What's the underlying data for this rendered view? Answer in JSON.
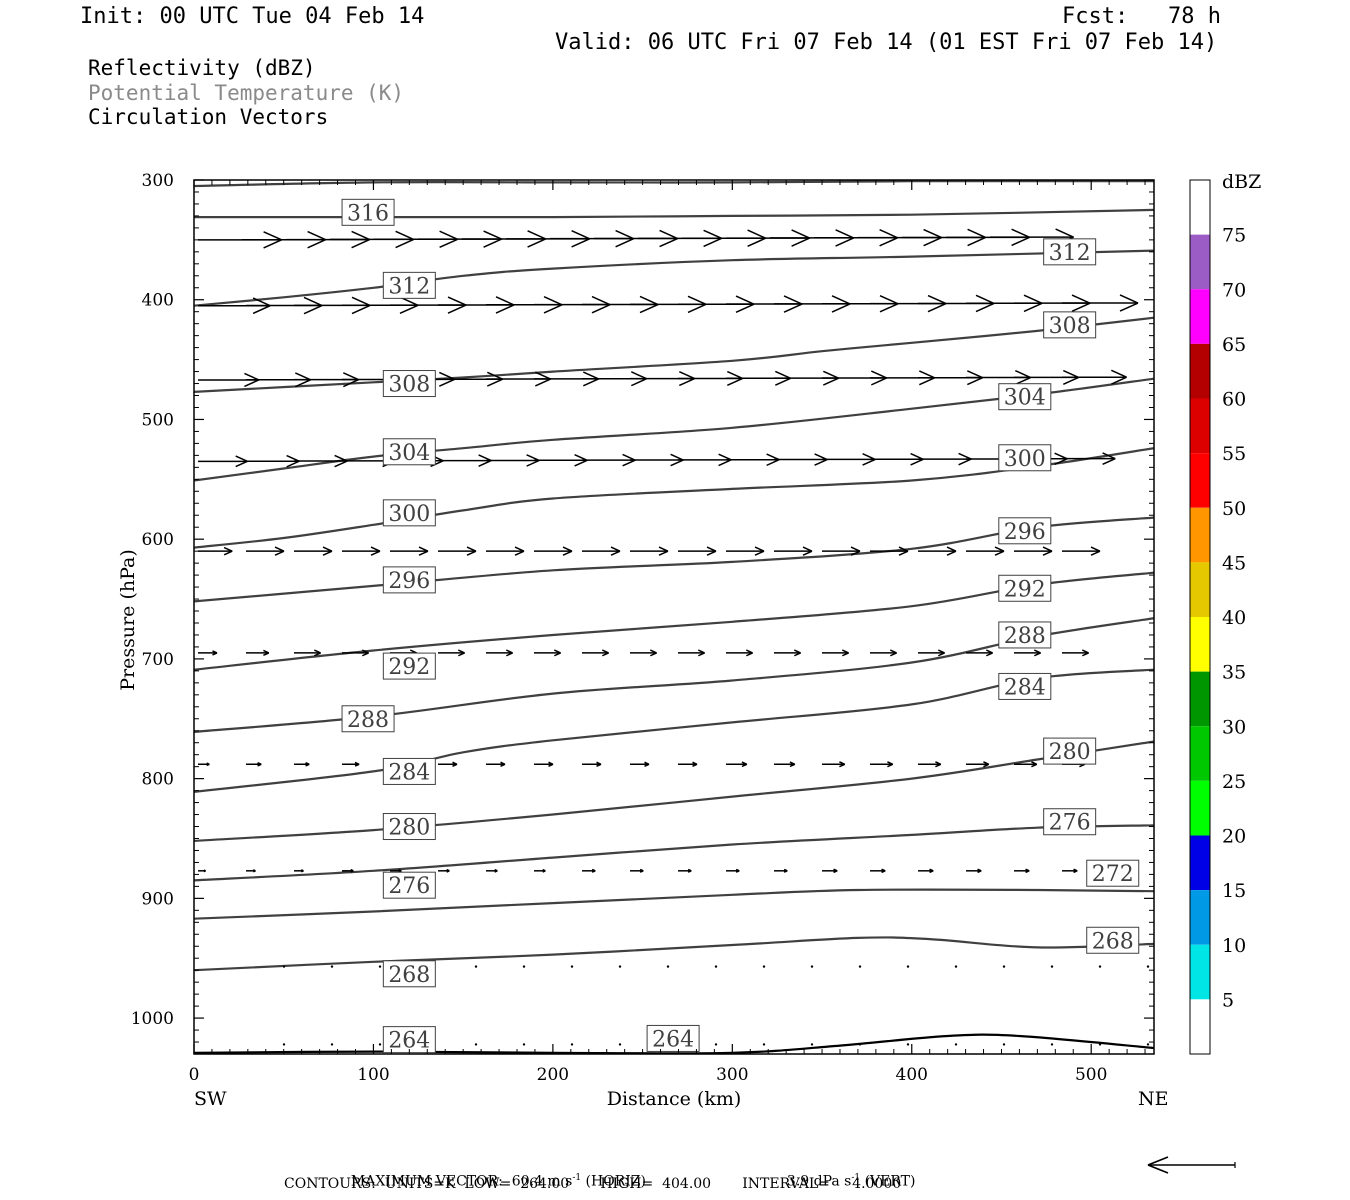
{
  "header": {
    "init": "Init: 00 UTC Tue 04 Feb 14",
    "fcst": "Fcst:   78 h",
    "valid": "Valid: 06 UTC Fri 07 Feb 14 (01 EST Fri 07 Feb 14)"
  },
  "titles": {
    "line1": "Reflectivity (dBZ)",
    "line2": "Potential Temperature (K)",
    "line3": "Circulation Vectors"
  },
  "chart_data": {
    "type": "cross-section",
    "xlabel": "Distance (km)",
    "ylabel": "Pressure (hPa)",
    "xlim": [
      0,
      535
    ],
    "ylim": [
      1030,
      300
    ],
    "x_ticks": [
      0,
      100,
      200,
      300,
      400,
      500
    ],
    "y_ticks": [
      300,
      400,
      500,
      600,
      700,
      800,
      900,
      1000
    ],
    "x_left_label": "SW",
    "x_right_label": "NE",
    "colors": {
      "contour": "#404040",
      "vector": "#000000"
    },
    "contours": [
      {
        "value": 316,
        "points": [
          [
            0,
            305
          ],
          [
            100,
            302
          ],
          [
            200,
            302
          ],
          [
            300,
            302
          ],
          [
            400,
            301
          ],
          [
            535,
            301
          ]
        ],
        "labels": [
          [
            97,
            327
          ]
        ]
      },
      {
        "value": 312,
        "points": [
          [
            0,
            331
          ],
          [
            100,
            331
          ],
          [
            200,
            331
          ],
          [
            300,
            330
          ],
          [
            400,
            329
          ],
          [
            535,
            325
          ]
        ],
        "labels": [
          [
            120,
            388
          ],
          [
            488,
            360
          ]
        ]
      },
      {
        "value": 308,
        "points": [
          [
            0,
            405
          ],
          [
            50,
            398
          ],
          [
            100,
            390
          ],
          [
            150,
            380
          ],
          [
            200,
            374
          ],
          [
            300,
            367
          ],
          [
            400,
            364
          ],
          [
            535,
            359
          ]
        ],
        "labels": [
          [
            120,
            470
          ],
          [
            488,
            421
          ]
        ]
      },
      {
        "value": 304,
        "points": [
          [
            0,
            477
          ],
          [
            100,
            469
          ],
          [
            150,
            465
          ],
          [
            200,
            460
          ],
          [
            300,
            451
          ],
          [
            350,
            443
          ],
          [
            400,
            436
          ],
          [
            470,
            426
          ],
          [
            535,
            415
          ]
        ],
        "labels": [
          [
            120,
            527
          ],
          [
            463,
            481
          ]
        ]
      },
      {
        "value": 300,
        "points": [
          [
            0,
            551
          ],
          [
            50,
            541
          ],
          [
            100,
            531
          ],
          [
            150,
            524
          ],
          [
            200,
            517
          ],
          [
            300,
            507
          ],
          [
            400,
            491
          ],
          [
            470,
            479
          ],
          [
            535,
            466
          ]
        ],
        "labels": [
          [
            120,
            578
          ],
          [
            463,
            532
          ]
        ]
      },
      {
        "value": 296,
        "points": [
          [
            0,
            607
          ],
          [
            50,
            599
          ],
          [
            100,
            588
          ],
          [
            150,
            576
          ],
          [
            200,
            566
          ],
          [
            300,
            558
          ],
          [
            400,
            551
          ],
          [
            470,
            539
          ],
          [
            535,
            524
          ]
        ],
        "labels": [
          [
            120,
            634
          ],
          [
            463,
            593
          ]
        ]
      },
      {
        "value": 292,
        "points": [
          [
            0,
            652
          ],
          [
            100,
            639
          ],
          [
            200,
            626
          ],
          [
            300,
            619
          ],
          [
            400,
            608
          ],
          [
            470,
            590
          ],
          [
            535,
            582
          ]
        ],
        "labels": [
          [
            120,
            706
          ],
          [
            463,
            641
          ]
        ]
      },
      {
        "value": 288,
        "points": [
          [
            0,
            709
          ],
          [
            100,
            693
          ],
          [
            200,
            680
          ],
          [
            300,
            669
          ],
          [
            400,
            656
          ],
          [
            470,
            638
          ],
          [
            535,
            628
          ]
        ],
        "labels": [
          [
            97,
            750
          ],
          [
            463,
            680
          ]
        ]
      },
      {
        "value": 284,
        "points": [
          [
            0,
            761
          ],
          [
            100,
            748
          ],
          [
            200,
            729
          ],
          [
            300,
            718
          ],
          [
            400,
            703
          ],
          [
            470,
            681
          ],
          [
            535,
            666
          ]
        ],
        "labels": [
          [
            120,
            794
          ],
          [
            463,
            723
          ]
        ]
      },
      {
        "value": 280,
        "points": [
          [
            0,
            811
          ],
          [
            100,
            794
          ],
          [
            150,
            778
          ],
          [
            200,
            768
          ],
          [
            300,
            753
          ],
          [
            400,
            738
          ],
          [
            470,
            716
          ],
          [
            535,
            709
          ]
        ],
        "labels": [
          [
            120,
            840
          ],
          [
            488,
            777
          ]
        ]
      },
      {
        "value": 276,
        "points": [
          [
            0,
            852
          ],
          [
            100,
            843
          ],
          [
            200,
            830
          ],
          [
            300,
            815
          ],
          [
            400,
            800
          ],
          [
            470,
            784
          ],
          [
            535,
            769
          ]
        ],
        "labels": [
          [
            120,
            889
          ],
          [
            488,
            836
          ]
        ]
      },
      {
        "value": 272,
        "points": [
          [
            0,
            885
          ],
          [
            100,
            877
          ],
          [
            200,
            866
          ],
          [
            300,
            855
          ],
          [
            400,
            847
          ],
          [
            470,
            841
          ],
          [
            535,
            839
          ]
        ],
        "labels": [
          [
            512,
            879
          ]
        ]
      },
      {
        "value": 268,
        "points": [
          [
            0,
            917
          ],
          [
            100,
            911
          ],
          [
            200,
            904
          ],
          [
            300,
            897
          ],
          [
            370,
            893
          ],
          [
            470,
            893
          ],
          [
            535,
            894
          ]
        ],
        "labels": [
          [
            120,
            963
          ],
          [
            512,
            935
          ]
        ]
      },
      {
        "value": 264,
        "points": [
          [
            0,
            960
          ],
          [
            100,
            953
          ],
          [
            200,
            947
          ],
          [
            300,
            939
          ],
          [
            370,
            933
          ],
          [
            410,
            934
          ],
          [
            470,
            941
          ],
          [
            535,
            938
          ]
        ],
        "labels": [
          [
            120,
            1018
          ],
          [
            267,
            1017
          ]
        ]
      }
    ],
    "surface_bottom": [
      [
        0,
        1029
      ],
      [
        100,
        1028
      ],
      [
        200,
        1029
      ],
      [
        300,
        1029
      ],
      [
        360,
        1023
      ],
      [
        420,
        1015
      ],
      [
        460,
        1015
      ],
      [
        535,
        1025
      ]
    ],
    "vector_scale_note": "MAXIMUM VECTOR:  60.4 m s",
    "vector_rows": [
      {
        "p": 350,
        "lens": [
          44,
          44,
          44,
          44,
          44,
          44,
          44,
          44,
          44,
          44,
          44,
          44,
          44,
          44,
          44,
          44,
          44,
          44,
          44
        ],
        "dx": 44,
        "x0": 0
      },
      {
        "p": 405,
        "lens": [
          38,
          40,
          40,
          40,
          40,
          40,
          40,
          40,
          40,
          40,
          40,
          40,
          40,
          40,
          40,
          40,
          40,
          40,
          40
        ],
        "dx": 48,
        "x0": 0
      },
      {
        "p": 467,
        "lens": [
          32,
          34,
          34,
          34,
          34,
          34,
          34,
          34,
          34,
          34,
          34,
          34,
          34,
          34,
          34,
          34,
          34,
          34,
          34
        ],
        "dx": 48,
        "x0": 0
      },
      {
        "p": 535,
        "lens": [
          26,
          28,
          28,
          28,
          28,
          28,
          28,
          28,
          28,
          28,
          28,
          28,
          28,
          28,
          28,
          28,
          28,
          28,
          28
        ],
        "dx": 48,
        "x0": 0
      },
      {
        "p": 610,
        "lens": [
          18,
          20,
          20,
          20,
          20,
          20,
          20,
          20,
          20,
          20,
          20,
          20,
          20,
          20,
          20,
          20,
          20,
          20,
          20
        ],
        "dx": 48,
        "x0": 0
      },
      {
        "p": 695,
        "lens": [
          10,
          12,
          14,
          14,
          14,
          14,
          14,
          14,
          14,
          14,
          14,
          14,
          14,
          14,
          14,
          14,
          14,
          14,
          14
        ],
        "dx": 48,
        "x0": 0
      },
      {
        "p": 788,
        "lens": [
          6,
          8,
          8,
          9,
          9,
          10,
          10,
          10,
          10,
          10,
          10,
          11,
          11,
          12,
          12,
          12,
          12,
          12,
          12
        ],
        "dx": 48,
        "x0": 0
      },
      {
        "p": 877,
        "lens": [
          4,
          5,
          5,
          6,
          6,
          6,
          6,
          6,
          7,
          7,
          7,
          7,
          7,
          8,
          8,
          8,
          8,
          8,
          8
        ],
        "dx": 48,
        "x0": 0
      },
      {
        "p": 957,
        "lens": [
          1,
          1,
          1,
          1,
          1,
          1,
          1,
          1,
          1,
          1,
          1,
          1,
          1,
          1,
          1,
          1,
          1,
          1,
          1
        ],
        "dx": 48,
        "x0": 0
      },
      {
        "p": 1022,
        "lens": [
          1,
          1,
          1,
          1,
          1,
          1,
          1,
          1,
          1,
          1,
          1,
          1,
          1,
          1,
          1,
          1,
          1,
          1,
          1
        ],
        "dx": 48,
        "x0": 0
      }
    ]
  },
  "colorbar": {
    "unit": "dBZ",
    "labels": [
      "5",
      "10",
      "15",
      "20",
      "25",
      "30",
      "35",
      "40",
      "45",
      "50",
      "55",
      "60",
      "65",
      "70",
      "75"
    ],
    "colors": [
      "#ffffff",
      "#00e6e6",
      "#0099e6",
      "#0000e6",
      "#00ff00",
      "#00c800",
      "#009600",
      "#ffff00",
      "#e6c800",
      "#ff9600",
      "#ff0000",
      "#dc0000",
      "#b40000",
      "#ff00ff",
      "#9b5cc6",
      "#ffffff"
    ]
  },
  "footer": {
    "line1_a": "MAXIMUM VECTOR:  60.4 m s",
    "line1_b": " (HORIZ)",
    "line1_c": "3.9 dPa s",
    "line1_d": " (VERT)",
    "sup": "-1",
    "line2": "CONTOURS:  UNITS=K  LOW=  264.00       HIGH=  404.00       INTERVAL=     4.0000"
  }
}
